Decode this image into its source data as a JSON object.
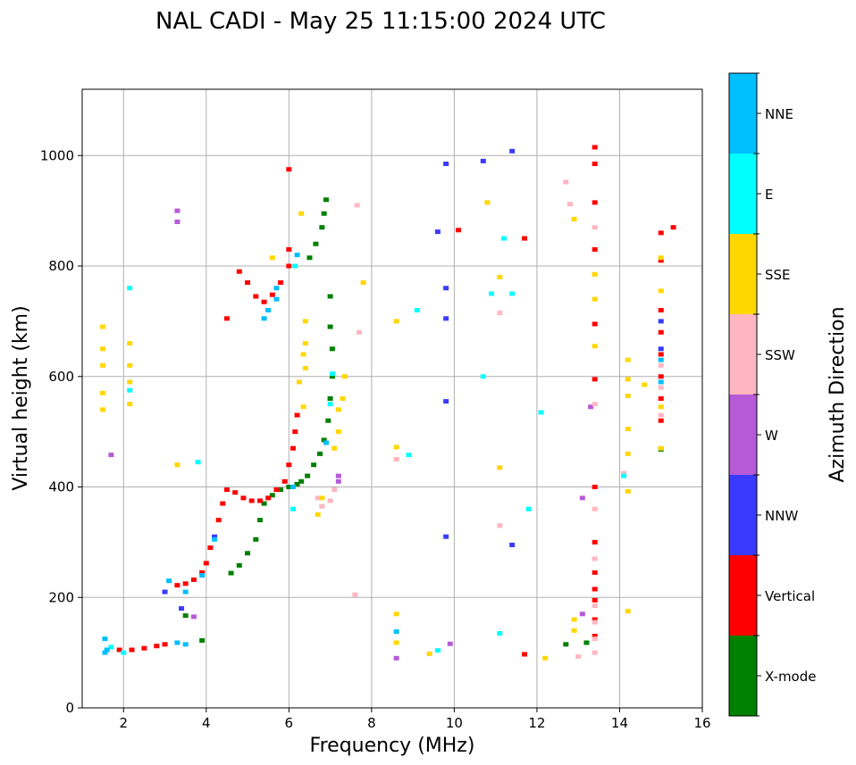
{
  "chart_data": {
    "type": "scatter",
    "title": "NAL CADI - May 25 11:15:00 2024 UTC",
    "xlabel": "Frequency (MHz)",
    "ylabel": "Virtual height (km)",
    "xlim": [
      1,
      16
    ],
    "ylim": [
      0,
      1120
    ],
    "xticks": [
      2,
      4,
      6,
      8,
      10,
      12,
      14,
      16
    ],
    "yticks": [
      0,
      200,
      400,
      600,
      800,
      1000
    ],
    "grid": true,
    "colorbar": {
      "title": "Azimuth Direction",
      "categories": [
        {
          "label": "X-mode",
          "color": "#008000"
        },
        {
          "label": "Vertical",
          "color": "#ff0000"
        },
        {
          "label": "NNW",
          "color": "#3a3aff"
        },
        {
          "label": "W",
          "color": "#b65ad8"
        },
        {
          "label": "SSW",
          "color": "#ffb6c1"
        },
        {
          "label": "SSE",
          "color": "#ffd700"
        },
        {
          "label": "E",
          "color": "#00ffff"
        },
        {
          "label": "NNE",
          "color": "#00bfff"
        }
      ]
    },
    "series": [
      {
        "name": "X-mode",
        "points": [
          [
            3.5,
            167
          ],
          [
            3.9,
            122
          ],
          [
            4.6,
            244
          ],
          [
            4.8,
            258
          ],
          [
            5.0,
            280
          ],
          [
            5.2,
            305
          ],
          [
            5.3,
            340
          ],
          [
            5.4,
            370
          ],
          [
            5.6,
            385
          ],
          [
            5.8,
            395
          ],
          [
            6.0,
            400
          ],
          [
            6.2,
            405
          ],
          [
            6.3,
            410
          ],
          [
            6.45,
            420
          ],
          [
            6.6,
            440
          ],
          [
            6.75,
            460
          ],
          [
            6.85,
            485
          ],
          [
            6.95,
            520
          ],
          [
            7.0,
            560
          ],
          [
            7.05,
            600
          ],
          [
            7.05,
            650
          ],
          [
            7.0,
            690
          ],
          [
            7.0,
            745
          ],
          [
            6.5,
            815
          ],
          [
            6.65,
            840
          ],
          [
            6.8,
            870
          ],
          [
            6.85,
            895
          ],
          [
            6.9,
            920
          ],
          [
            12.7,
            115
          ],
          [
            13.2,
            118
          ],
          [
            15.0,
            468
          ]
        ]
      },
      {
        "name": "Vertical",
        "points": [
          [
            1.9,
            105
          ],
          [
            2.2,
            105
          ],
          [
            2.5,
            108
          ],
          [
            2.8,
            112
          ],
          [
            3.0,
            115
          ],
          [
            3.3,
            222
          ],
          [
            3.5,
            225
          ],
          [
            3.7,
            232
          ],
          [
            3.9,
            245
          ],
          [
            4.0,
            262
          ],
          [
            4.1,
            290
          ],
          [
            4.3,
            340
          ],
          [
            4.4,
            370
          ],
          [
            4.5,
            395
          ],
          [
            4.7,
            390
          ],
          [
            4.9,
            380
          ],
          [
            5.1,
            375
          ],
          [
            5.3,
            375
          ],
          [
            5.5,
            380
          ],
          [
            5.7,
            395
          ],
          [
            5.9,
            410
          ],
          [
            6.0,
            440
          ],
          [
            6.1,
            470
          ],
          [
            6.15,
            500
          ],
          [
            6.2,
            530
          ],
          [
            4.5,
            705
          ],
          [
            4.8,
            790
          ],
          [
            5.0,
            770
          ],
          [
            5.2,
            745
          ],
          [
            5.4,
            735
          ],
          [
            5.6,
            748
          ],
          [
            5.8,
            770
          ],
          [
            6.0,
            975
          ],
          [
            6.0,
            830
          ],
          [
            6.0,
            800
          ],
          [
            13.4,
            130
          ],
          [
            13.4,
            160
          ],
          [
            13.4,
            195
          ],
          [
            13.4,
            215
          ],
          [
            13.4,
            245
          ],
          [
            13.4,
            300
          ],
          [
            13.4,
            400
          ],
          [
            13.4,
            595
          ],
          [
            13.4,
            695
          ],
          [
            13.4,
            830
          ],
          [
            13.4,
            915
          ],
          [
            13.4,
            985
          ],
          [
            13.4,
            1015
          ],
          [
            15.0,
            520
          ],
          [
            15.0,
            560
          ],
          [
            15.0,
            600
          ],
          [
            15.0,
            640
          ],
          [
            15.0,
            680
          ],
          [
            15.0,
            720
          ],
          [
            15.0,
            810
          ],
          [
            15.0,
            860
          ],
          [
            15.3,
            870
          ],
          [
            11.7,
            97
          ],
          [
            10.1,
            865
          ],
          [
            11.7,
            850
          ]
        ]
      },
      {
        "name": "NNW",
        "points": [
          [
            3.0,
            210
          ],
          [
            3.4,
            180
          ],
          [
            4.2,
            310
          ],
          [
            9.8,
            985
          ],
          [
            10.7,
            990
          ],
          [
            11.4,
            1008
          ],
          [
            9.8,
            760
          ],
          [
            9.8,
            555
          ],
          [
            9.8,
            310
          ],
          [
            11.4,
            295
          ],
          [
            9.6,
            862
          ],
          [
            9.8,
            705
          ],
          [
            15.0,
            700
          ],
          [
            15.0,
            650
          ]
        ]
      },
      {
        "name": "W",
        "points": [
          [
            3.3,
            880
          ],
          [
            3.3,
            900
          ],
          [
            3.7,
            165
          ],
          [
            1.7,
            458
          ],
          [
            7.2,
            410
          ],
          [
            7.2,
            420
          ],
          [
            8.6,
            90
          ],
          [
            9.9,
            116
          ],
          [
            13.1,
            170
          ],
          [
            13.1,
            380
          ],
          [
            13.3,
            545
          ]
        ]
      },
      {
        "name": "SSW",
        "points": [
          [
            6.7,
            380
          ],
          [
            6.8,
            365
          ],
          [
            7.0,
            375
          ],
          [
            7.1,
            395
          ],
          [
            7.6,
            205
          ],
          [
            7.7,
            680
          ],
          [
            8.6,
            450
          ],
          [
            12.8,
            912
          ],
          [
            12.7,
            952
          ],
          [
            11.1,
            715
          ],
          [
            11.1,
            330
          ],
          [
            13.4,
            100
          ],
          [
            13.4,
            125
          ],
          [
            13.4,
            155
          ],
          [
            13.4,
            185
          ],
          [
            13.4,
            270
          ],
          [
            13.4,
            360
          ],
          [
            13.4,
            870
          ],
          [
            13.4,
            550
          ],
          [
            13.0,
            93
          ],
          [
            15.0,
            530
          ],
          [
            15.0,
            580
          ],
          [
            15.0,
            620
          ],
          [
            14.1,
            425
          ],
          [
            7.65,
            910
          ]
        ]
      },
      {
        "name": "SSE",
        "points": [
          [
            1.5,
            620
          ],
          [
            1.5,
            650
          ],
          [
            1.5,
            690
          ],
          [
            1.5,
            540
          ],
          [
            1.5,
            570
          ],
          [
            2.15,
            590
          ],
          [
            2.15,
            620
          ],
          [
            2.15,
            660
          ],
          [
            2.15,
            550
          ],
          [
            3.3,
            440
          ],
          [
            6.25,
            590
          ],
          [
            6.35,
            640
          ],
          [
            6.4,
            660
          ],
          [
            6.4,
            700
          ],
          [
            6.4,
            615
          ],
          [
            6.35,
            545
          ],
          [
            6.7,
            350
          ],
          [
            6.8,
            380
          ],
          [
            7.1,
            470
          ],
          [
            7.2,
            500
          ],
          [
            7.3,
            560
          ],
          [
            7.35,
            600
          ],
          [
            7.2,
            540
          ],
          [
            7.8,
            770
          ],
          [
            8.6,
            700
          ],
          [
            8.6,
            472
          ],
          [
            8.6,
            170
          ],
          [
            8.6,
            118
          ],
          [
            12.2,
            90
          ],
          [
            9.4,
            98
          ],
          [
            10.8,
            915
          ],
          [
            11.1,
            780
          ],
          [
            11.1,
            435
          ],
          [
            12.9,
            885
          ],
          [
            12.9,
            160
          ],
          [
            12.9,
            140
          ],
          [
            13.4,
            655
          ],
          [
            13.4,
            740
          ],
          [
            13.4,
            785
          ],
          [
            14.2,
            630
          ],
          [
            14.2,
            595
          ],
          [
            14.2,
            565
          ],
          [
            14.2,
            505
          ],
          [
            14.2,
            460
          ],
          [
            14.2,
            392
          ],
          [
            14.2,
            175
          ],
          [
            14.6,
            585
          ],
          [
            15.0,
            470
          ],
          [
            15.0,
            755
          ],
          [
            15.0,
            815
          ],
          [
            15.0,
            545
          ],
          [
            5.6,
            815
          ],
          [
            6.3,
            895
          ]
        ]
      },
      {
        "name": "E",
        "points": [
          [
            1.7,
            110
          ],
          [
            2.15,
            760
          ],
          [
            2.15,
            575
          ],
          [
            2.0,
            100
          ],
          [
            3.8,
            445
          ],
          [
            6.1,
            360
          ],
          [
            6.15,
            800
          ],
          [
            7.05,
            605
          ],
          [
            8.9,
            458
          ],
          [
            9.1,
            720
          ],
          [
            9.6,
            104
          ],
          [
            10.7,
            600
          ],
          [
            10.9,
            750
          ],
          [
            11.2,
            850
          ],
          [
            11.4,
            750
          ],
          [
            11.1,
            135
          ],
          [
            12.1,
            535
          ],
          [
            11.8,
            360
          ],
          [
            14.1,
            420
          ],
          [
            7.0,
            550
          ]
        ]
      },
      {
        "name": "NNE",
        "points": [
          [
            1.55,
            125
          ],
          [
            1.55,
            100
          ],
          [
            1.6,
            105
          ],
          [
            3.3,
            118
          ],
          [
            3.5,
            115
          ],
          [
            3.1,
            230
          ],
          [
            3.5,
            210
          ],
          [
            3.9,
            240
          ],
          [
            4.2,
            305
          ],
          [
            5.7,
            740
          ],
          [
            5.7,
            760
          ],
          [
            5.5,
            720
          ],
          [
            5.4,
            705
          ],
          [
            6.2,
            820
          ],
          [
            6.1,
            400
          ],
          [
            6.9,
            480
          ],
          [
            8.6,
            138
          ],
          [
            15.0,
            630
          ],
          [
            15.0,
            590
          ]
        ]
      }
    ]
  }
}
